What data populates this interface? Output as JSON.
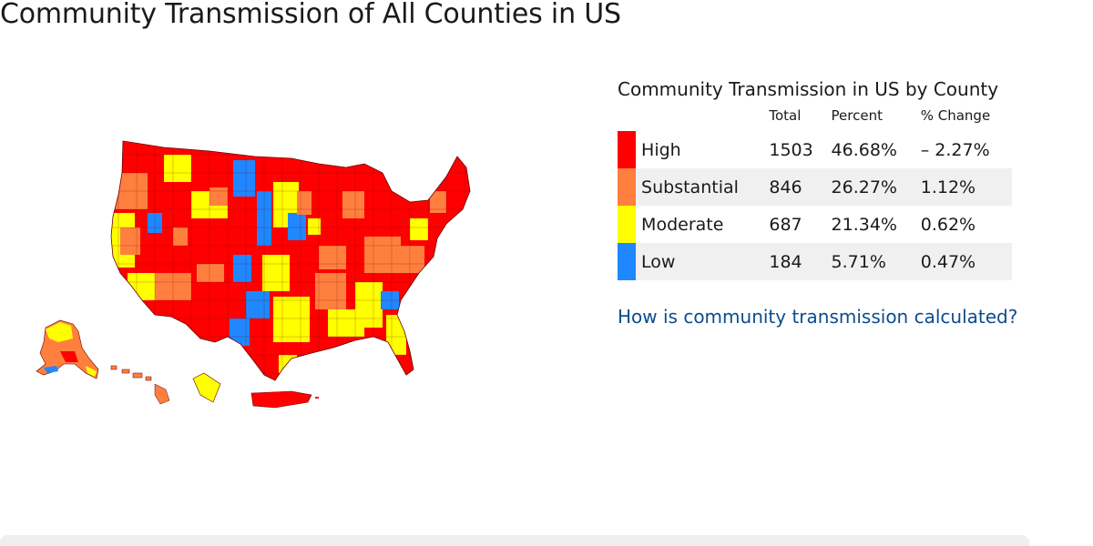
{
  "page": {
    "title": "Community Transmission of All Counties in US"
  },
  "map": {
    "colors": {
      "high": "#ff0000",
      "substantial": "#ff7f3f",
      "moderate": "#ffff00",
      "low": "#1f87ff",
      "border": "#6a0000"
    }
  },
  "legend": {
    "title": "Community Transmission in US by County",
    "headers": {
      "total": "Total",
      "percent": "Percent",
      "change": "% Change"
    },
    "rows": [
      {
        "level": "High",
        "total": "1503",
        "percent": "46.68%",
        "change": "– 2.27%",
        "color": "#ff0000"
      },
      {
        "level": "Substantial",
        "total": "846",
        "percent": "26.27%",
        "change": "1.12%",
        "color": "#ff7f3f"
      },
      {
        "level": "Moderate",
        "total": "687",
        "percent": "21.34%",
        "change": "0.62%",
        "color": "#ffff00"
      },
      {
        "level": "Low",
        "total": "184",
        "percent": "5.71%",
        "change": "0.47%",
        "color": "#1f87ff"
      }
    ],
    "link_text": "How is community transmission calculated?"
  }
}
